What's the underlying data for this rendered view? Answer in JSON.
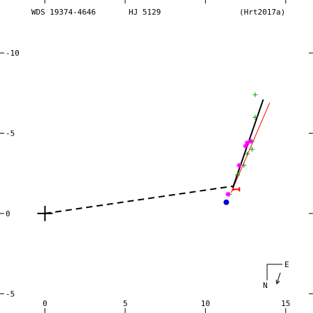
{
  "header": {
    "wds_id": "WDS 19374-4646",
    "discoverer": "HJ 5129",
    "orbit_ref": "(Hrt2017a)"
  },
  "compass": {
    "east_label": "E",
    "north_label": "N"
  },
  "chart_data": {
    "type": "scatter",
    "title": "",
    "xlabel": "",
    "ylabel": "",
    "xlim": [
      -2.8,
      16.7
    ],
    "ylim": [
      -6.2,
      13.3
    ],
    "x_ticks": [
      {
        "v": 0,
        "label": "0"
      },
      {
        "v": 5,
        "label": "5"
      },
      {
        "v": 10,
        "label": "10"
      },
      {
        "v": 15,
        "label": "15"
      }
    ],
    "y_ticks": [
      {
        "v": -5,
        "label": "-5"
      },
      {
        "v": 0,
        "label": "0"
      },
      {
        "v": 5,
        "label": "-5"
      },
      {
        "v": 10,
        "label": "-10"
      }
    ],
    "grid": false,
    "primary_star": {
      "x": 0,
      "y": 0
    },
    "node_line": {
      "from": [
        0,
        0
      ],
      "to": [
        11.7,
        1.7
      ]
    },
    "orbit_arc": {
      "points": [
        [
          11.7,
          1.6
        ],
        [
          13.6,
          7.1
        ]
      ],
      "color": "#000000"
    },
    "fit_line": {
      "points": [
        [
          11.6,
          1.3
        ],
        [
          14.0,
          6.9
        ]
      ],
      "color": "#ff0000"
    },
    "series": [
      {
        "marker": "plus",
        "color": "#009900",
        "points": [
          [
            13.1,
            7.4
          ],
          [
            13.1,
            6.0
          ],
          [
            12.9,
            4.5
          ],
          [
            12.9,
            4.0
          ],
          [
            12.6,
            3.7
          ],
          [
            12.4,
            3.0
          ],
          [
            12.0,
            2.4
          ],
          [
            11.5,
            1.2
          ]
        ]
      },
      {
        "marker": "asterisk",
        "color": "#ff00ff",
        "points": [
          [
            12.8,
            4.5
          ],
          [
            12.6,
            4.4
          ],
          [
            12.5,
            4.2
          ],
          [
            12.1,
            3.0
          ],
          [
            11.4,
            1.2
          ]
        ]
      },
      {
        "marker": "circle",
        "color": "#0000cc",
        "points": [
          [
            11.3,
            0.7
          ]
        ]
      },
      {
        "marker": "error",
        "color": "#ff0000",
        "points": [
          [
            11.9,
            1.5
          ]
        ]
      }
    ]
  }
}
